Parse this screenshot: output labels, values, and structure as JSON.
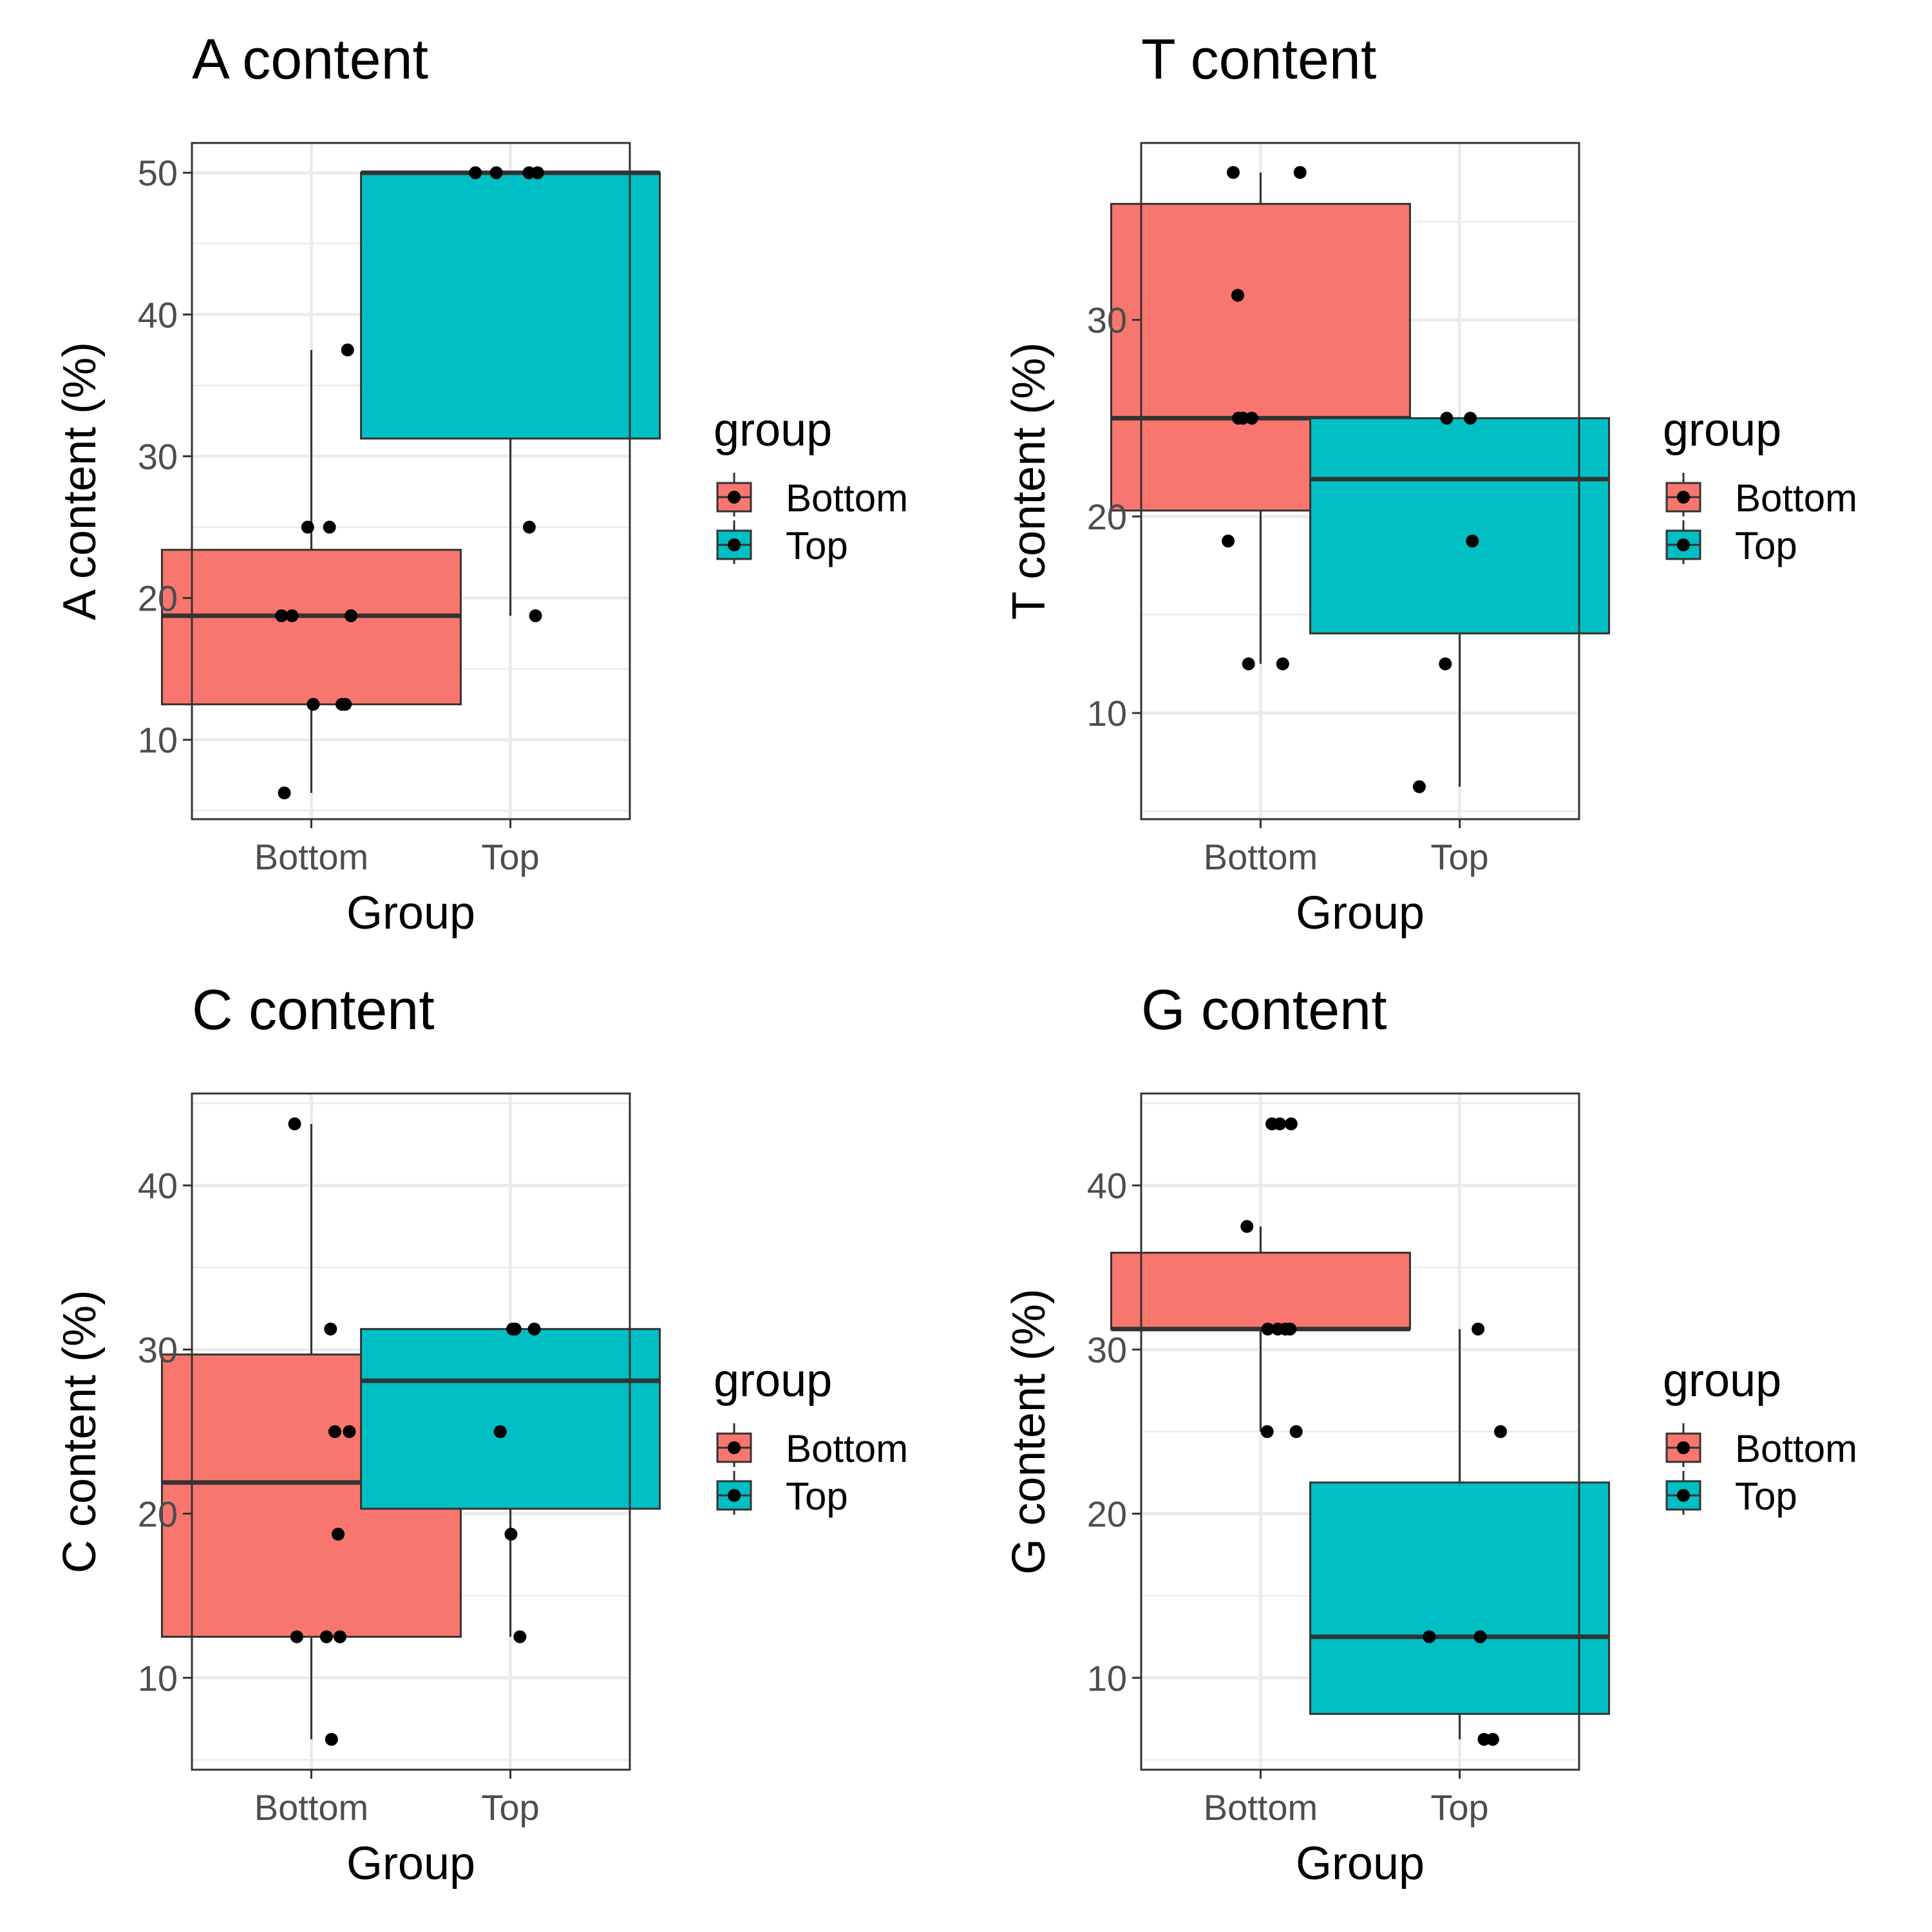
{
  "colors": {
    "Bottom": "#F8766D",
    "Top": "#00BFC4",
    "point": "#000000",
    "grid": "#EBEBEB",
    "panel_border": "#333333"
  },
  "legend": {
    "title": "group",
    "entries": [
      "Bottom",
      "Top"
    ]
  },
  "chart_data": [
    {
      "type": "box",
      "title": "A content",
      "xlabel": "Group",
      "ylabel": "A content (%)",
      "categories": [
        "Bottom",
        "Top"
      ],
      "ylim": [
        4.4,
        52.1
      ],
      "yticks": [
        10,
        20,
        30,
        40,
        50
      ],
      "grid": true,
      "boxes": [
        {
          "group": "Bottom",
          "min": 6.25,
          "q1": 12.5,
          "median": 18.75,
          "q3": 23.4,
          "max": 37.5
        },
        {
          "group": "Top",
          "min": 18.75,
          "q1": 31.25,
          "median": 50,
          "q3": 50,
          "max": 50
        }
      ],
      "points": [
        {
          "group": "Bottom",
          "values": [
            37.5,
            25,
            25,
            18.75,
            18.75,
            18.75,
            12.5,
            12.5,
            12.5,
            6.25
          ]
        },
        {
          "group": "Top",
          "values": [
            50,
            50,
            50,
            50,
            25,
            18.75
          ]
        }
      ]
    },
    {
      "type": "box",
      "title": "T content",
      "xlabel": "Group",
      "ylabel": "T content (%)",
      "categories": [
        "Bottom",
        "Top"
      ],
      "ylim": [
        4.6,
        39
      ],
      "yticks": [
        10,
        20,
        30
      ],
      "grid": true,
      "boxes": [
        {
          "group": "Bottom",
          "min": 12.5,
          "q1": 20.3,
          "median": 25,
          "q3": 35.9,
          "max": 37.5
        },
        {
          "group": "Top",
          "min": 6.25,
          "q1": 14.05,
          "median": 21.9,
          "q3": 25,
          "max": 25
        }
      ],
      "points": [
        {
          "group": "Bottom",
          "values": [
            37.5,
            37.5,
            31.25,
            25,
            25,
            25,
            18.75,
            12.5,
            12.5
          ]
        },
        {
          "group": "Top",
          "values": [
            25,
            25,
            18.75,
            12.5,
            6.25
          ]
        }
      ]
    },
    {
      "type": "box",
      "title": "C content",
      "xlabel": "Group",
      "ylabel": "C content (%)",
      "categories": [
        "Bottom",
        "Top"
      ],
      "ylim": [
        4.4,
        45.6
      ],
      "yticks": [
        10,
        20,
        30,
        40
      ],
      "grid": true,
      "boxes": [
        {
          "group": "Bottom",
          "min": 6.25,
          "q1": 12.5,
          "median": 21.9,
          "q3": 29.7,
          "max": 43.75
        },
        {
          "group": "Top",
          "min": 12.5,
          "q1": 20.3,
          "median": 28.1,
          "q3": 31.25,
          "max": 31.25
        }
      ],
      "points": [
        {
          "group": "Bottom",
          "values": [
            43.75,
            31.25,
            25,
            25,
            18.75,
            12.5,
            12.5,
            12.5,
            6.25
          ]
        },
        {
          "group": "Top",
          "values": [
            31.25,
            31.25,
            31.25,
            25,
            18.75,
            12.5
          ]
        }
      ]
    },
    {
      "type": "box",
      "title": "G content",
      "xlabel": "Group",
      "ylabel": "G content (%)",
      "categories": [
        "Bottom",
        "Top"
      ],
      "ylim": [
        4.4,
        45.6
      ],
      "yticks": [
        10,
        20,
        30,
        40
      ],
      "grid": true,
      "boxes": [
        {
          "group": "Bottom",
          "min": 25,
          "q1": 31.25,
          "median": 31.25,
          "q3": 35.9,
          "max": 37.5
        },
        {
          "group": "Top",
          "min": 6.25,
          "q1": 7.8,
          "median": 12.5,
          "q3": 21.9,
          "max": 31.25
        }
      ],
      "points": [
        {
          "group": "Bottom",
          "values": [
            43.75,
            43.75,
            43.75,
            37.5,
            31.25,
            31.25,
            31.25,
            31.25,
            25,
            25
          ]
        },
        {
          "group": "Top",
          "values": [
            31.25,
            25,
            12.5,
            12.5,
            6.25,
            6.25
          ]
        }
      ]
    }
  ]
}
